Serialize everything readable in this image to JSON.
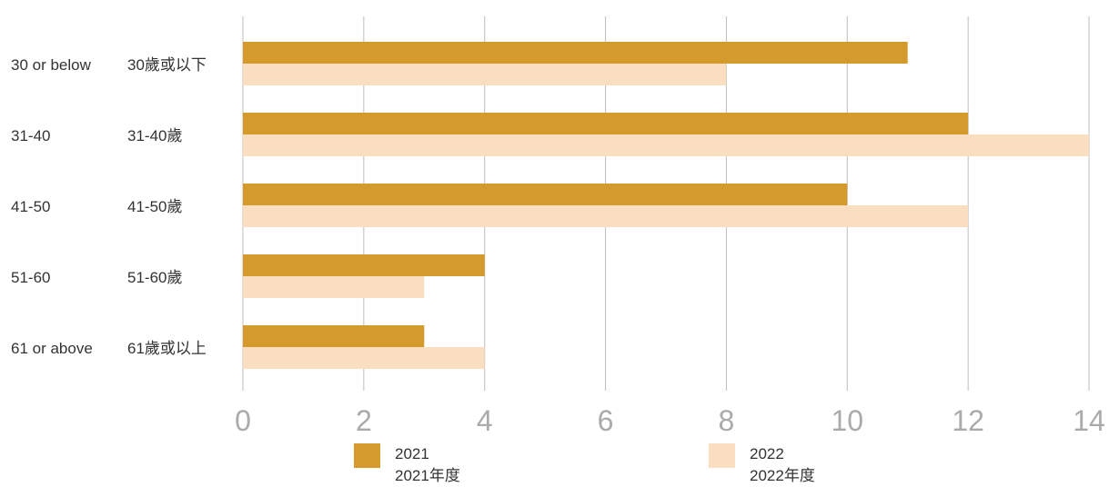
{
  "chart_data": {
    "type": "bar",
    "orientation": "horizontal",
    "categories": [
      {
        "en": "30 or below",
        "zh": "30歲或以下"
      },
      {
        "en": "31-40",
        "zh": "31-40歲"
      },
      {
        "en": "41-50",
        "zh": "41-50歲"
      },
      {
        "en": "51-60",
        "zh": "51-60歲"
      },
      {
        "en": "61 or above",
        "zh": "61歲或以上"
      }
    ],
    "series": [
      {
        "name": "2021",
        "name_zh": "2021年度",
        "color": "#D49B2C",
        "values": [
          11,
          12,
          10,
          4,
          3
        ]
      },
      {
        "name": "2022",
        "name_zh": "2022年度",
        "color": "#F9DEBF",
        "values": [
          8,
          14,
          12,
          3,
          4
        ]
      }
    ],
    "xlim": [
      0,
      14
    ],
    "xticks": [
      0,
      2,
      4,
      6,
      8,
      10,
      12,
      14
    ],
    "grid": true,
    "legend_position": "bottom"
  }
}
